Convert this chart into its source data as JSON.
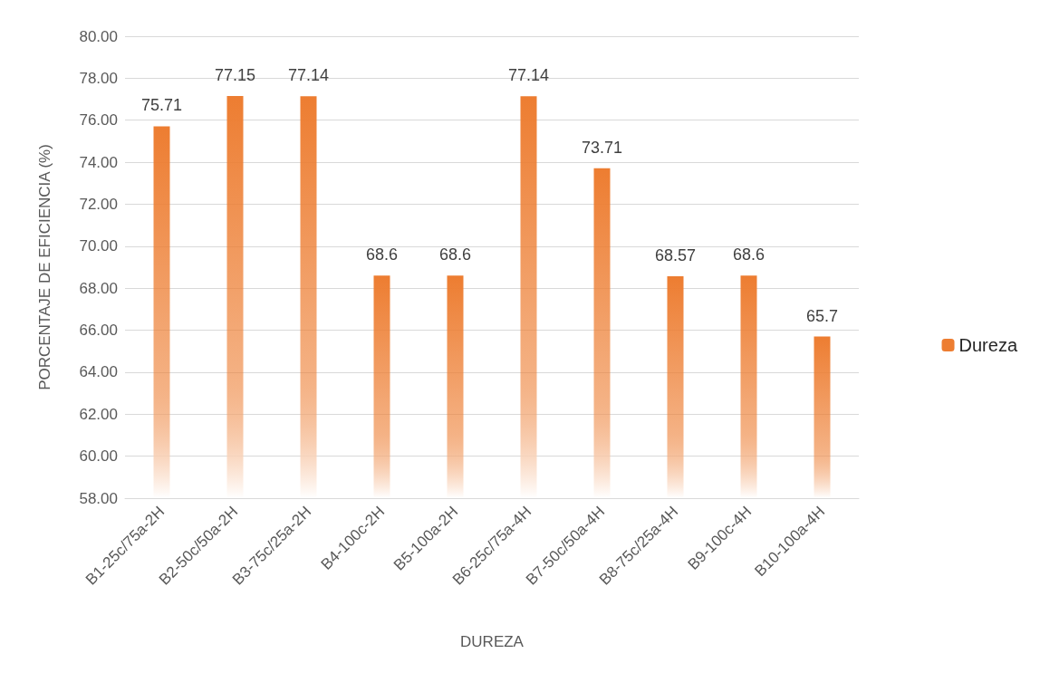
{
  "chart_data": {
    "type": "bar",
    "xlabel": "DUREZA",
    "ylabel": "PORCENTAJE DE EFICIENCIA (%)",
    "categories": [
      "B1-25c/75a-2H",
      "B2-50c/50a-2H",
      "B3-75c/25a-2H",
      "B4-100c-2H",
      "B5-100a-2H",
      "B6-25c/75a-4H",
      "B7-50c/50a-4H",
      "B8-75c/25a-4H",
      "B9-100c-4H",
      "B10-100a-4H"
    ],
    "series": [
      {
        "name": "Dureza",
        "color": "#ed7d31",
        "values": [
          75.71,
          77.15,
          77.14,
          68.6,
          68.6,
          77.14,
          73.71,
          68.57,
          68.6,
          65.7
        ]
      }
    ],
    "ylim": [
      58,
      80
    ],
    "yticks": [
      {
        "value": 58,
        "label": "58.00"
      },
      {
        "value": 60,
        "label": "60.00"
      },
      {
        "value": 62,
        "label": "62.00"
      },
      {
        "value": 64,
        "label": "64.00"
      },
      {
        "value": 66,
        "label": "66.00"
      },
      {
        "value": 68,
        "label": "68.00"
      },
      {
        "value": 70,
        "label": "70.00"
      },
      {
        "value": 72,
        "label": "72.00"
      },
      {
        "value": 74,
        "label": "74.00"
      },
      {
        "value": 76,
        "label": "76.00"
      },
      {
        "value": 78,
        "label": "78.00"
      },
      {
        "value": 80,
        "label": "80.00"
      }
    ],
    "grid": "y",
    "legend": "right",
    "data_labels": true
  }
}
